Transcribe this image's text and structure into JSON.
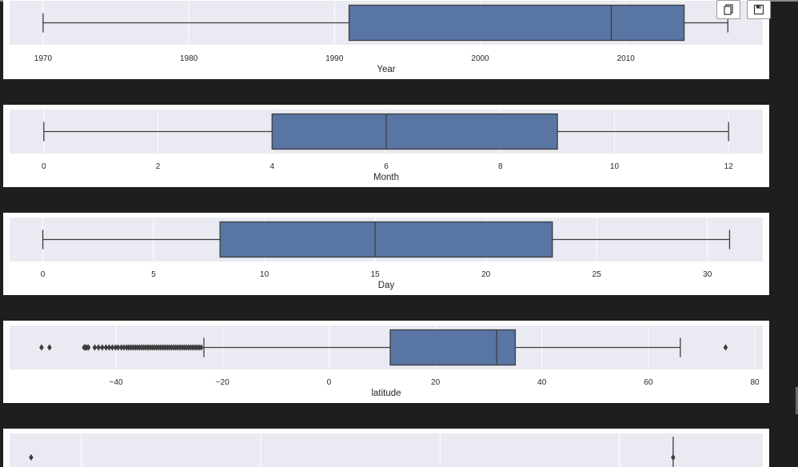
{
  "toolbar": {
    "copy_icon": "copy-icon",
    "save_icon": "save-icon"
  },
  "colors": {
    "box_fill": "#5875a4",
    "plot_bg": "#eaeaf2",
    "edge": "#3d3d3d"
  },
  "chart_data": [
    {
      "type": "box",
      "xlabel": "Year",
      "xlim": [
        1967.7,
        2019.4
      ],
      "ticks": [
        1970,
        1980,
        1990,
        2000,
        2010
      ],
      "tick_labels": [
        "1970",
        "1980",
        "1990",
        "2000",
        "2010"
      ],
      "whisker_low": 1970,
      "q1": 1991,
      "median": 2009,
      "q3": 2014,
      "whisker_high": 2017,
      "fliers": []
    },
    {
      "type": "box",
      "xlabel": "Month",
      "xlim": [
        -0.6,
        12.6
      ],
      "ticks": [
        0,
        2,
        4,
        6,
        8,
        10,
        12
      ],
      "tick_labels": [
        "0",
        "2",
        "4",
        "6",
        "8",
        "10",
        "12"
      ],
      "whisker_low": 0,
      "q1": 4,
      "median": 6,
      "q3": 9,
      "whisker_high": 12,
      "fliers": []
    },
    {
      "type": "box",
      "xlabel": "Day",
      "xlim": [
        -1.5,
        32.5
      ],
      "ticks": [
        0,
        5,
        10,
        15,
        20,
        25,
        30
      ],
      "tick_labels": [
        "0",
        "5",
        "10",
        "15",
        "20",
        "25",
        "30"
      ],
      "whisker_low": 0,
      "q1": 8,
      "median": 15,
      "q3": 23,
      "whisker_high": 31,
      "fliers": []
    },
    {
      "type": "box",
      "xlabel": "latitude",
      "xlim": [
        -60,
        81.5
      ],
      "ticks": [
        -40,
        -20,
        0,
        20,
        40,
        60,
        80
      ],
      "tick_labels": [
        "−40",
        "−20",
        "0",
        "20",
        "40",
        "60",
        "80"
      ],
      "whisker_low": -23.5,
      "q1": 11.5,
      "median": 31.5,
      "q3": 35,
      "whisker_high": 66,
      "fliers": [
        -54,
        -52.5,
        -46,
        -45.8,
        -45.5,
        -45.2,
        -44,
        -43.3,
        -42.6,
        -41.9,
        -41.3,
        -40.7,
        -40.1,
        -39.6,
        -39,
        -38.5,
        -38,
        -37.6,
        -37.2,
        -36.8,
        -36.4,
        -36,
        -35.6,
        -35.2,
        -34.8,
        -34.4,
        -34,
        -33.6,
        -33.2,
        -32.8,
        -32.4,
        -32,
        -31.6,
        -31.2,
        -30.8,
        -30.4,
        -30,
        -29.6,
        -29.2,
        -28.8,
        -28.4,
        -28,
        -27.6,
        -27.2,
        -26.8,
        -26.4,
        -26,
        -25.6,
        -25.2,
        -24.8,
        -24.4,
        -24,
        74.5
      ]
    },
    {
      "type": "box",
      "xlabel": "",
      "xlim": [
        -190,
        230
      ],
      "ticks": [
        -150,
        -50,
        50,
        150
      ],
      "tick_labels": [],
      "whisker_low": null,
      "q1": null,
      "median": null,
      "q3": null,
      "whisker_high": 180,
      "fliers": [
        -178,
        180
      ]
    }
  ]
}
